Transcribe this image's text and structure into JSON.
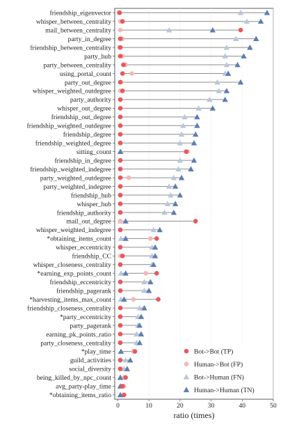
{
  "chart_data": {
    "type": "dot",
    "xlabel": "ratio (times)",
    "ylabel": "",
    "xlim": [
      -1,
      50
    ],
    "xticks": [
      0,
      10,
      20,
      30,
      40,
      50
    ],
    "grid": false,
    "legend_position": "bottom-right",
    "legend": [
      {
        "key": "tp",
        "label": "Bot->Bot (TP)",
        "shape": "circle",
        "color": "#e8585c"
      },
      {
        "key": "fp",
        "label": "Human->Bot (FP)",
        "shape": "circle",
        "color": "#f7b7b6"
      },
      {
        "key": "fn",
        "label": "Bot->Human (FN)",
        "shape": "triangle",
        "color": "#b9c6dc"
      },
      {
        "key": "tn",
        "label": "Human->Human (TN)",
        "shape": "triangle",
        "color": "#5d7db3"
      }
    ],
    "rows": [
      {
        "label": "friendship_eigenvector",
        "tp": 0.6,
        "fp": 0.3,
        "fn": 39.5,
        "tn": 48.0
      },
      {
        "label": "whisper_between_centrality",
        "tp": 1.5,
        "fp": 0.8,
        "fn": 41.5,
        "tn": 46.0
      },
      {
        "label": "mail_between_centrality",
        "tp": 39.5,
        "fp": 0.8,
        "fn": 16.5,
        "tn": 30.5
      },
      {
        "label": "party_in_degree",
        "tp": 0.8,
        "fp": 1.5,
        "fn": 38.0,
        "tn": 44.5
      },
      {
        "label": "friendship_between_centrality",
        "tp": 0.8,
        "fp": 0.5,
        "fn": 35.0,
        "tn": 42.5
      },
      {
        "label": "party_hub",
        "tp": 0.8,
        "fp": 1.5,
        "fn": 34.5,
        "tn": 40.5
      },
      {
        "label": "party_between_centrality",
        "tp": 1.8,
        "fp": 2.5,
        "fn": 35.0,
        "tn": 38.5
      },
      {
        "label": "using_portal_count",
        "tp": 1.5,
        "fp": 4.5,
        "fn": 34.5,
        "tn": 35.5
      },
      {
        "label": "party_out_degree",
        "tp": 0.8,
        "fp": 1.0,
        "fn": 32.0,
        "tn": 39.5
      },
      {
        "label": "whisper_weighted_outdegree",
        "tp": 1.5,
        "fp": 0.8,
        "fn": 32.5,
        "tn": 35.0
      },
      {
        "label": "party_authority",
        "tp": 0.8,
        "fp": 0.8,
        "fn": 29.5,
        "tn": 34.5
      },
      {
        "label": "whisper_out_degree",
        "tp": 0.8,
        "fp": 0.8,
        "fn": 26.0,
        "tn": 30.5
      },
      {
        "label": "friendship_out_degree",
        "tp": 0.8,
        "fp": 0.8,
        "fn": 21.5,
        "tn": 25.5
      },
      {
        "label": "friendship_weighted_outdegree",
        "tp": 0.8,
        "fp": 0.8,
        "fn": 21.0,
        "tn": 25.5
      },
      {
        "label": "friendship_degree",
        "tp": 0.8,
        "fp": 0.8,
        "fn": 20.5,
        "tn": 25.0
      },
      {
        "label": "friendship_weighted_degree",
        "tp": 0.8,
        "fp": 0.8,
        "fn": 20.0,
        "tn": 24.5
      },
      {
        "label": "sitting_count",
        "tp": 22.0,
        "fp": 22.5,
        "fn": 1.0,
        "tn": 0.8
      },
      {
        "label": "friendship_in_degree",
        "tp": 0.8,
        "fp": 0.8,
        "fn": 20.0,
        "tn": 24.5
      },
      {
        "label": "friendship_weighted_indegree",
        "tp": 0.8,
        "fp": 0.8,
        "fn": 19.5,
        "tn": 23.5
      },
      {
        "label": "party_weighted_outdegree",
        "tp": 0.8,
        "fp": 3.5,
        "fn": 18.0,
        "tn": 20.5
      },
      {
        "label": "party_weighted_indegree",
        "tp": 0.8,
        "fp": 0.8,
        "fn": 16.5,
        "tn": 18.5
      },
      {
        "label": "friendship_hub",
        "tp": 0.8,
        "fp": 0.8,
        "fn": 17.0,
        "tn": 20.0
      },
      {
        "label": "whisper_hub",
        "tp": 0.8,
        "fp": 0.8,
        "fn": 16.0,
        "tn": 18.5
      },
      {
        "label": "friendship_authority",
        "tp": 0.8,
        "fp": 0.8,
        "fn": 15.0,
        "tn": 18.0
      },
      {
        "label": "mail_out_degree",
        "tp": 25.0,
        "fp": 0.8,
        "fn": 0.8,
        "tn": 2.5
      },
      {
        "label": "whisper_weighted_indegree",
        "tp": 0.8,
        "fp": 0.8,
        "fn": 11.5,
        "tn": 13.5
      },
      {
        "label": "*obtaining_items_count",
        "tp": 12.5,
        "fp": 10.5,
        "fn": 1.0,
        "tn": 2.5
      },
      {
        "label": "whisper_eccentricity",
        "tp": 0.8,
        "fp": 0.8,
        "fn": 11.0,
        "tn": 12.0
      },
      {
        "label": "friendship_CC",
        "tp": 1.5,
        "fp": 0.8,
        "fn": 11.0,
        "tn": 12.0
      },
      {
        "label": "whisper_closeness_centrality",
        "tp": 0.8,
        "fp": 0.8,
        "fn": 11.0,
        "tn": 11.5
      },
      {
        "label": "*earning_exp_points_count",
        "tp": 12.5,
        "fp": 9.0,
        "fn": 1.0,
        "tn": 2.5
      },
      {
        "label": "friendship_eccentricity",
        "tp": 0.8,
        "fp": 0.8,
        "fn": 8.5,
        "tn": 10.5
      },
      {
        "label": "friendship_pagerank",
        "tp": 0.8,
        "fp": 0.8,
        "fn": 8.5,
        "tn": 10.0
      },
      {
        "label": "*harvesting_items_max_count",
        "tp": 13.0,
        "fp": 5.0,
        "fn": 1.0,
        "tn": 2.0
      },
      {
        "label": "friendship_closeness_centrality",
        "tp": 0.8,
        "fp": 0.8,
        "fn": 7.0,
        "tn": 8.5
      },
      {
        "label": "*party_eccentricity",
        "tp": 0.8,
        "fp": 0.8,
        "fn": 6.5,
        "tn": 7.5
      },
      {
        "label": "party_pagerank",
        "tp": 0.8,
        "fp": 0.8,
        "fn": 6.5,
        "tn": 7.0
      },
      {
        "label": "earning_pk_points_ratio",
        "tp": 0.8,
        "fp": 0.8,
        "fn": 6.0,
        "tn": 7.5
      },
      {
        "label": "party_closeness_centrality",
        "tp": 0.8,
        "fp": 0.8,
        "fn": 6.0,
        "tn": 7.0
      },
      {
        "label": "*play_time",
        "tp": 5.5,
        "fp": 5.0,
        "fn": 1.0,
        "tn": 1.0
      },
      {
        "label": "guild_activities",
        "tp": 0.8,
        "fp": 0.8,
        "fn": 2.5,
        "tn": 4.0
      },
      {
        "label": "social_diversity",
        "tp": 0.8,
        "fp": 0.8,
        "fn": 2.0,
        "tn": 3.0
      },
      {
        "label": "being_killed_by_npc_count",
        "tp": 2.5,
        "fp": 2.0,
        "fn": 0.8,
        "tn": 0.8
      },
      {
        "label": "avg_party-play_time",
        "tp": 1.5,
        "fp": 2.0,
        "fn": 0.8,
        "tn": 0.8
      },
      {
        "label": "*obtaining_items_ratio",
        "tp": 2.0,
        "fp": 2.0,
        "fn": 0.8,
        "tn": 0.8
      }
    ]
  }
}
